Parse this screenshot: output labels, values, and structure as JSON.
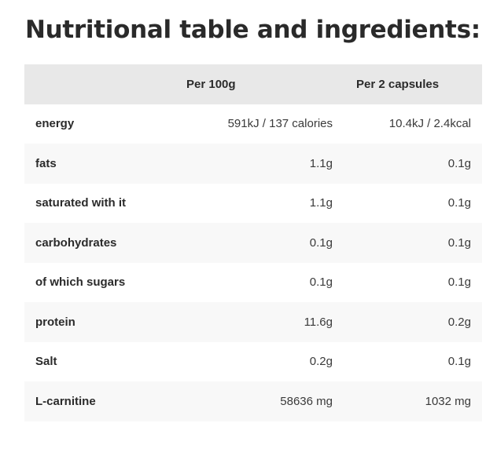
{
  "title": "Nutritional table and ingredients:",
  "table": {
    "headers": [
      "",
      "Per 100g",
      "Per 2 capsules"
    ],
    "rows": [
      {
        "name": "energy",
        "per100g": "591kJ / 137 calories",
        "per2caps": "10.4kJ / 2.4kcal"
      },
      {
        "name": "fats",
        "per100g": "1.1g",
        "per2caps": "0.1g"
      },
      {
        "name": "saturated with it",
        "per100g": "1.1g",
        "per2caps": "0.1g"
      },
      {
        "name": "carbohydrates",
        "per100g": "0.1g",
        "per2caps": "0.1g"
      },
      {
        "name": "of which sugars",
        "per100g": "0.1g",
        "per2caps": "0.1g"
      },
      {
        "name": "protein",
        "per100g": "11.6g",
        "per2caps": "0.2g"
      },
      {
        "name": "Salt",
        "per100g": "0.2g",
        "per2caps": "0.1g"
      },
      {
        "name": "L-carnitine",
        "per100g": "58636 mg",
        "per2caps": "1032 mg"
      }
    ]
  },
  "colors": {
    "header_bg": "#e8e8e8",
    "alt_row_bg": "#f8f8f8",
    "text": "#2b2b2b"
  }
}
